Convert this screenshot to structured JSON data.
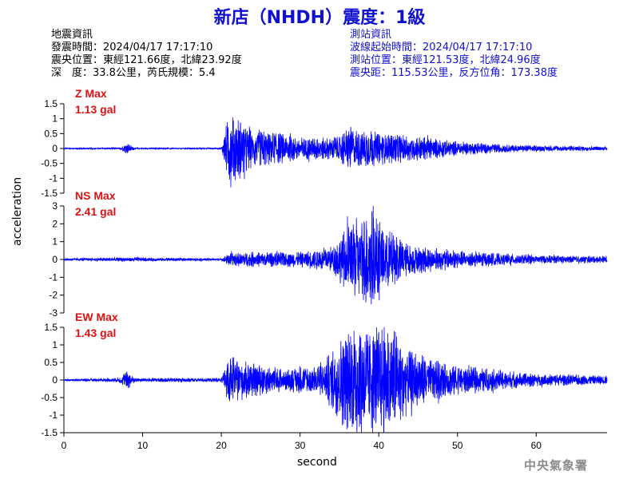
{
  "title": "新店（NHDH）震度：1級",
  "quake_info": {
    "heading": "地震資訊",
    "time": "發震時間：2024/04/17 17:17:10",
    "location": "震央位置：東經121.66度，北緯23.92度",
    "depth_mag": "深　度：33.8公里，芮氏規模：5.4"
  },
  "station_info": {
    "heading": "測站資訊",
    "wave_start": "波線起始時間：2024/04/17 17:17:10",
    "location": "測站位置：東經121.53度，北緯24.96度",
    "distance": "震央距：115.53公里，反方位角：173.38度"
  },
  "colors": {
    "trace": "#0000ff",
    "max_label": "#e01010",
    "title": "#1010d0",
    "axis": "#000000"
  },
  "watermark": "中央氣象署",
  "chart_data": [
    {
      "type": "line",
      "channel": "Z",
      "max_label": "Z Max",
      "max_value_label": "1.13 gal",
      "peak_gal": 1.13,
      "ylim": [
        -1.5,
        1.5
      ],
      "yticks": [
        "1.5",
        "1",
        "0.5",
        "0",
        "-0.5",
        "-1",
        "-1.5"
      ],
      "envelope_x": [
        0,
        7,
        8,
        9,
        20,
        21,
        24,
        27,
        30,
        35,
        36,
        40,
        45,
        50,
        55,
        60,
        69
      ],
      "envelope_amp": [
        0.02,
        0.02,
        0.15,
        0.02,
        0.02,
        1.1,
        0.55,
        0.45,
        0.3,
        0.35,
        0.6,
        0.45,
        0.35,
        0.2,
        0.12,
        0.08,
        0.06
      ]
    },
    {
      "type": "line",
      "channel": "NS",
      "max_label": "NS Max",
      "max_value_label": "2.41 gal",
      "peak_gal": 2.41,
      "ylim": [
        -3,
        3
      ],
      "yticks": [
        "3",
        "2",
        "1",
        "0",
        "-1",
        "-2",
        "-3"
      ],
      "envelope_x": [
        0,
        8,
        20,
        21,
        25,
        30,
        34,
        36,
        39,
        41,
        44,
        50,
        55,
        60,
        69
      ],
      "envelope_amp": [
        0.05,
        0.1,
        0.05,
        0.3,
        0.35,
        0.35,
        0.6,
        1.5,
        2.4,
        1.4,
        0.7,
        0.4,
        0.3,
        0.2,
        0.15
      ]
    },
    {
      "type": "line",
      "channel": "EW",
      "max_label": "EW Max",
      "max_value_label": "1.43 gal",
      "peak_gal": 1.43,
      "ylim": [
        -1.5,
        1.5
      ],
      "yticks": [
        "1.5",
        "1",
        "0.5",
        "0",
        "-0.5",
        "-1",
        "-1.5"
      ],
      "envelope_x": [
        0,
        7,
        8,
        9,
        20,
        21,
        24,
        27,
        28,
        33,
        35,
        37,
        39,
        42,
        44,
        47,
        50,
        55,
        60,
        69
      ],
      "envelope_amp": [
        0.02,
        0.05,
        0.25,
        0.05,
        0.05,
        0.55,
        0.4,
        0.3,
        0.25,
        0.4,
        1.0,
        1.4,
        1.3,
        1.3,
        0.7,
        0.5,
        0.35,
        0.25,
        0.15,
        0.1
      ]
    }
  ],
  "x_axis": {
    "label": "second",
    "xlim": [
      0,
      69
    ],
    "ticks": [
      "0",
      "10",
      "20",
      "30",
      "40",
      "50",
      "60"
    ]
  },
  "y_axis": {
    "label": "acceleration"
  }
}
